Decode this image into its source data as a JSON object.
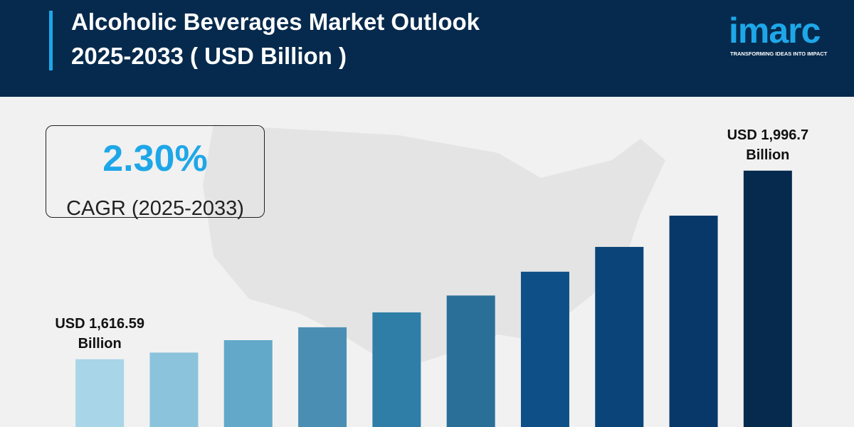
{
  "chart_data": {
    "type": "bar",
    "title_lines": [
      "Alcoholic Beverages Market Outlook",
      "2025-2033 ( USD Billion )"
    ],
    "logo": {
      "name": "imarc",
      "tagline": "TRANSFORMING IDEAS INTO IMPACT"
    },
    "cagr_value": "2.30%",
    "cagr_label": "CAGR (2025-2033)",
    "categories": [
      null,
      null,
      null,
      null,
      null,
      null,
      null,
      null,
      null,
      null
    ],
    "values": [
      1616.59,
      1630,
      1655,
      1681,
      1711,
      1745,
      1793,
      1843,
      1906,
      1996.7
    ],
    "value_labels": [
      "USD 1,616.59 Billion",
      null,
      null,
      null,
      null,
      null,
      null,
      null,
      null,
      "USD 1,996.7 Billion"
    ],
    "colors": [
      "#a8d5e8",
      "#8cc3dc",
      "#62a8c9",
      "#4a8fb3",
      "#2e7ea8",
      "#2a6f98",
      "#0d4f86",
      "#0a4478",
      "#08386a",
      "#062a4d"
    ],
    "ylim": [
      1480,
      2000
    ]
  }
}
